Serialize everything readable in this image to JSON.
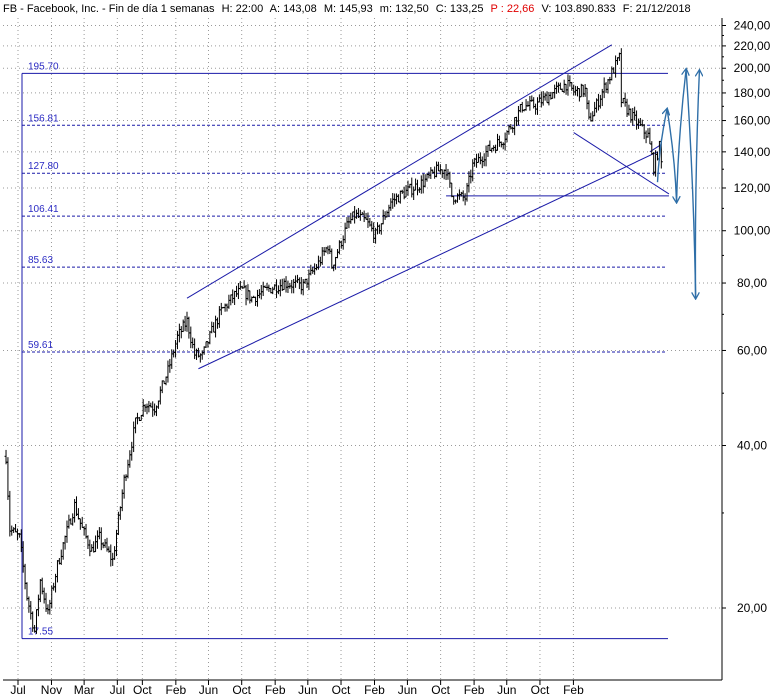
{
  "header": {
    "prefix": "FB - Facebook, Inc. - Fin de día 1 semanas",
    "h": "H: 22:00",
    "a": "A: 143,08",
    "m": "M: 145,93",
    "min": "m: 132,50",
    "c": "C: 133,25",
    "p": "P : 22,66",
    "v": "V: 103.890.833",
    "f": "F: 21/12/2018"
  },
  "colors": {
    "background": "#ffffff",
    "grid": "#9a9a9a",
    "price": "#000000",
    "trendlines": "#1a1aa8",
    "fib_labels": "#2b2bc4",
    "projection": "#2f6fa8",
    "change_red": "#e00000"
  },
  "chart_data": {
    "type": "ohlc",
    "scale": "log",
    "ylim": [
      14.5,
      245
    ],
    "ytick_labels": [
      "20,00",
      "40,00",
      "60,00",
      "80,00",
      "100,00",
      "120,00",
      "140,00",
      "160,00",
      "180,00",
      "200,00",
      "220,00",
      "240,00"
    ],
    "ytick_values": [
      20,
      40,
      60,
      80,
      100,
      120,
      140,
      160,
      180,
      200,
      220,
      240
    ],
    "xtick_labels": [
      "Jul",
      "Nov",
      "Mar",
      "Jul",
      "Oct",
      "Feb",
      "Jun",
      "Oct",
      "Feb",
      "Jun",
      "Oct",
      "Feb",
      "Jun",
      "Oct",
      "Feb",
      "Jun",
      "Oct",
      "Feb"
    ],
    "xtick_dates": [
      "2012-07",
      "2012-11",
      "2013-03",
      "2013-07",
      "2013-10",
      "2014-02",
      "2014-06",
      "2014-10",
      "2015-02",
      "2015-06",
      "2015-10",
      "2016-02",
      "2016-06",
      "2016-10",
      "2017-02",
      "2017-06",
      "2017-10",
      "2018-02"
    ],
    "price_path": [
      [
        "2012-05-18",
        38.2
      ],
      [
        "2012-06-01",
        28.0
      ],
      [
        "2012-07-06",
        27.0
      ],
      [
        "2012-08-03",
        21.0
      ],
      [
        "2012-08-31",
        18.1
      ],
      [
        "2012-09-21",
        22.5
      ],
      [
        "2012-10-19",
        19.5
      ],
      [
        "2012-11-02",
        21.3
      ],
      [
        "2012-11-23",
        24.0
      ],
      [
        "2012-12-21",
        27.0
      ],
      [
        "2013-01-25",
        31.0
      ],
      [
        "2013-02-22",
        28.0
      ],
      [
        "2013-03-29",
        25.6
      ],
      [
        "2013-04-26",
        27.0
      ],
      [
        "2013-06-14",
        24.5
      ],
      [
        "2013-07-26",
        34.5
      ],
      [
        "2013-09-06",
        44.0
      ],
      [
        "2013-10-11",
        48.0
      ],
      [
        "2013-11-15",
        47.0
      ],
      [
        "2014-01-03",
        55.0
      ],
      [
        "2014-02-07",
        63.5
      ],
      [
        "2014-03-14",
        68.0
      ],
      [
        "2014-04-11",
        59.0
      ],
      [
        "2014-05-09",
        58.5
      ],
      [
        "2014-06-13",
        65.0
      ],
      [
        "2014-07-18",
        71.0
      ],
      [
        "2014-09-05",
        76.0
      ],
      [
        "2014-10-03",
        77.5
      ],
      [
        "2014-11-07",
        75.0
      ],
      [
        "2015-01-09",
        78.0
      ],
      [
        "2015-03-06",
        80.0
      ],
      [
        "2015-05-15",
        79.0
      ],
      [
        "2015-07-10",
        87.0
      ],
      [
        "2015-08-14",
        94.0
      ],
      [
        "2015-08-28",
        86.0
      ],
      [
        "2015-10-23",
        102.0
      ],
      [
        "2015-11-20",
        107.0
      ],
      [
        "2016-01-01",
        104.0
      ],
      [
        "2016-02-05",
        98.0
      ],
      [
        "2016-04-01",
        113.0
      ],
      [
        "2016-05-13",
        117.0
      ],
      [
        "2016-07-29",
        123.0
      ],
      [
        "2016-09-16",
        129.0
      ],
      [
        "2016-10-21",
        130.0
      ],
      [
        "2016-11-11",
        116.0
      ],
      [
        "2016-12-30",
        115.0
      ],
      [
        "2017-01-27",
        132.0
      ],
      [
        "2017-03-24",
        141.0
      ],
      [
        "2017-05-19",
        148.0
      ],
      [
        "2017-07-28",
        170.0
      ],
      [
        "2017-09-15",
        171.0
      ],
      [
        "2017-11-03",
        178.0
      ],
      [
        "2018-01-05",
        187.0
      ],
      [
        "2018-02-02",
        181.0
      ],
      [
        "2018-03-16",
        182.0
      ],
      [
        "2018-03-29",
        159.0
      ],
      [
        "2018-04-13",
        165.0
      ],
      [
        "2018-05-25",
        184.0
      ],
      [
        "2018-07-20",
        209.0
      ],
      [
        "2018-07-27",
        174.0
      ],
      [
        "2018-09-07",
        162.0
      ],
      [
        "2018-10-12",
        154.0
      ],
      [
        "2018-11-02",
        150.0
      ],
      [
        "2018-11-23",
        131.5
      ],
      [
        "2018-12-14",
        143.0
      ],
      [
        "2018-12-21",
        133.25
      ]
    ],
    "fib_levels": [
      {
        "label": "195.70",
        "value": 195.7
      },
      {
        "label": "156.81",
        "value": 156.81
      },
      {
        "label": "127.80",
        "value": 127.8
      },
      {
        "label": "106.41",
        "value": 106.41
      },
      {
        "label": "85.63",
        "value": 85.63
      },
      {
        "label": "59.61",
        "value": 59.61
      },
      {
        "label": "17.55",
        "value": 17.55
      }
    ],
    "trendlines": [
      {
        "from": [
          "2014-03-14",
          75.0
        ],
        "to": [
          "2018-06-22",
          221.0
        ]
      },
      {
        "from": [
          "2014-04-25",
          55.5
        ],
        "to": [
          "2018-12-07",
          140.0
        ]
      },
      {
        "from": [
          "2018-02-02",
          152.0
        ],
        "to": [
          "2019-01-18",
          117.0
        ]
      },
      {
        "from": [
          "2016-10-21",
          116.0
        ],
        "to": [
          "2019-01-18",
          116.0
        ]
      },
      {
        "from": [
          "2018-11-09",
          140.0
        ],
        "to": [
          "2018-12-21",
          144.5
        ]
      }
    ],
    "projection": [
      [
        "2018-12-07",
        123.0
      ],
      [
        "2019-01-11",
        168.0
      ],
      [
        "2019-02-15",
        113.0
      ],
      [
        "2019-03-22",
        199.0
      ],
      [
        "2019-04-26",
        75.0
      ],
      [
        "2019-05-10",
        198.0
      ]
    ]
  }
}
